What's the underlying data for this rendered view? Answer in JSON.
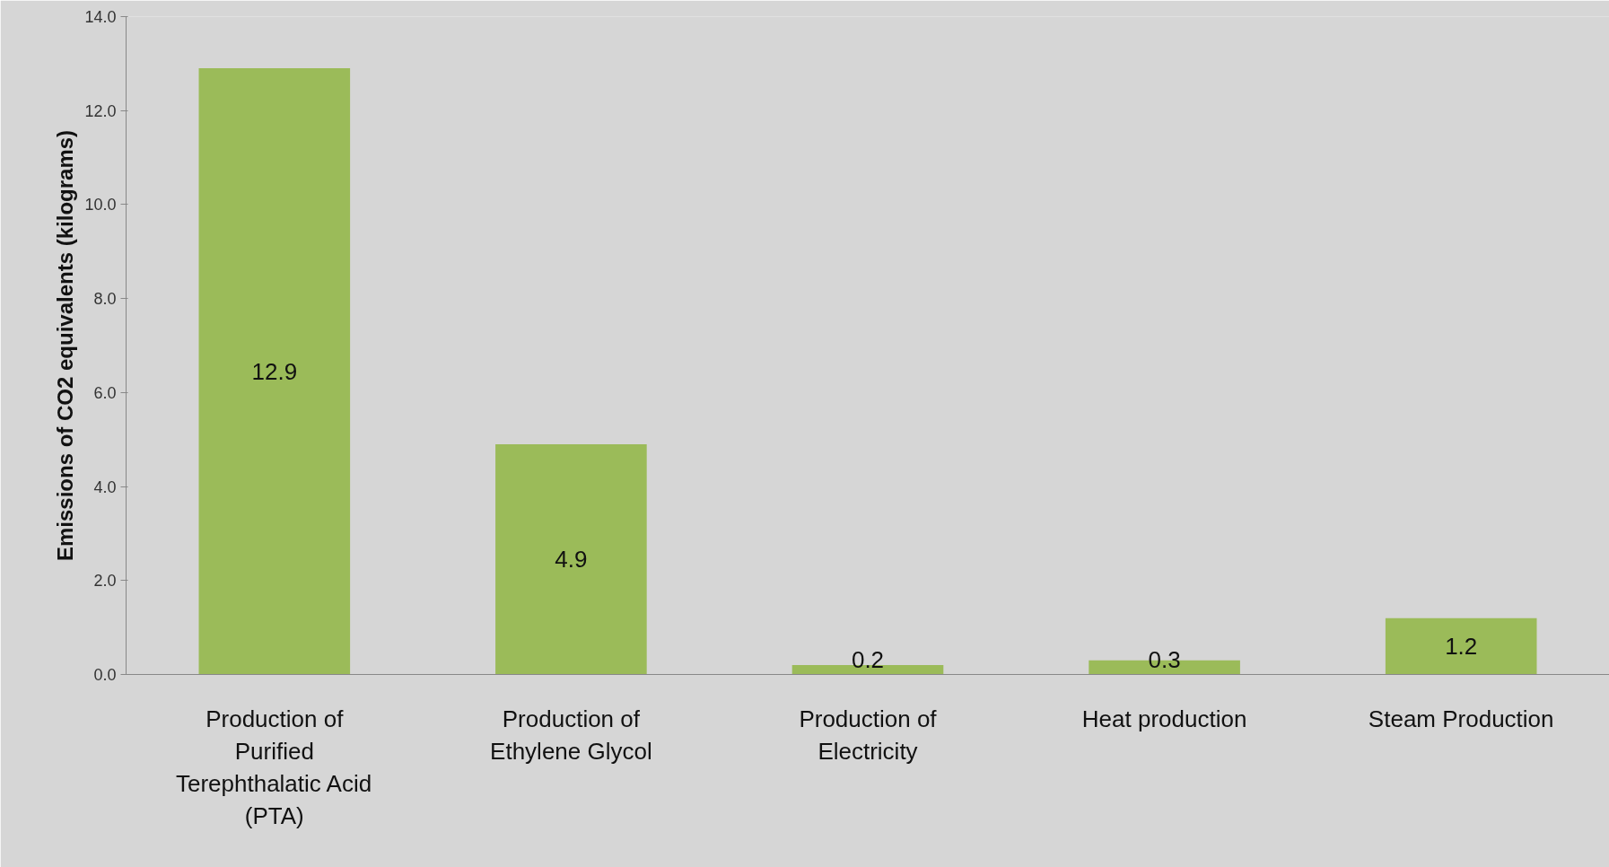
{
  "chart_data": {
    "type": "bar",
    "ylabel": "Emissions of CO2 equivalents (kilograms)",
    "categories": [
      "Production of Purified Terephthalatic Acid (PTA)",
      "Production of Ethylene Glycol",
      "Production of Electricity",
      "Heat production",
      "Steam Production"
    ],
    "values": [
      12.9,
      4.9,
      0.2,
      0.3,
      1.2
    ],
    "color": "#9bbb59",
    "ylim": [
      0,
      14
    ],
    "yticks": [
      {
        "value": 0,
        "label": "0.0"
      },
      {
        "value": 2,
        "label": "2.0"
      },
      {
        "value": 4,
        "label": "4.0"
      },
      {
        "value": 6,
        "label": "6.0"
      },
      {
        "value": 8,
        "label": "8.0"
      },
      {
        "value": 10,
        "label": "10.0"
      },
      {
        "value": 12,
        "label": "12.0"
      },
      {
        "value": 14,
        "label": "14.0"
      }
    ],
    "data_labels": true,
    "grid": false
  }
}
